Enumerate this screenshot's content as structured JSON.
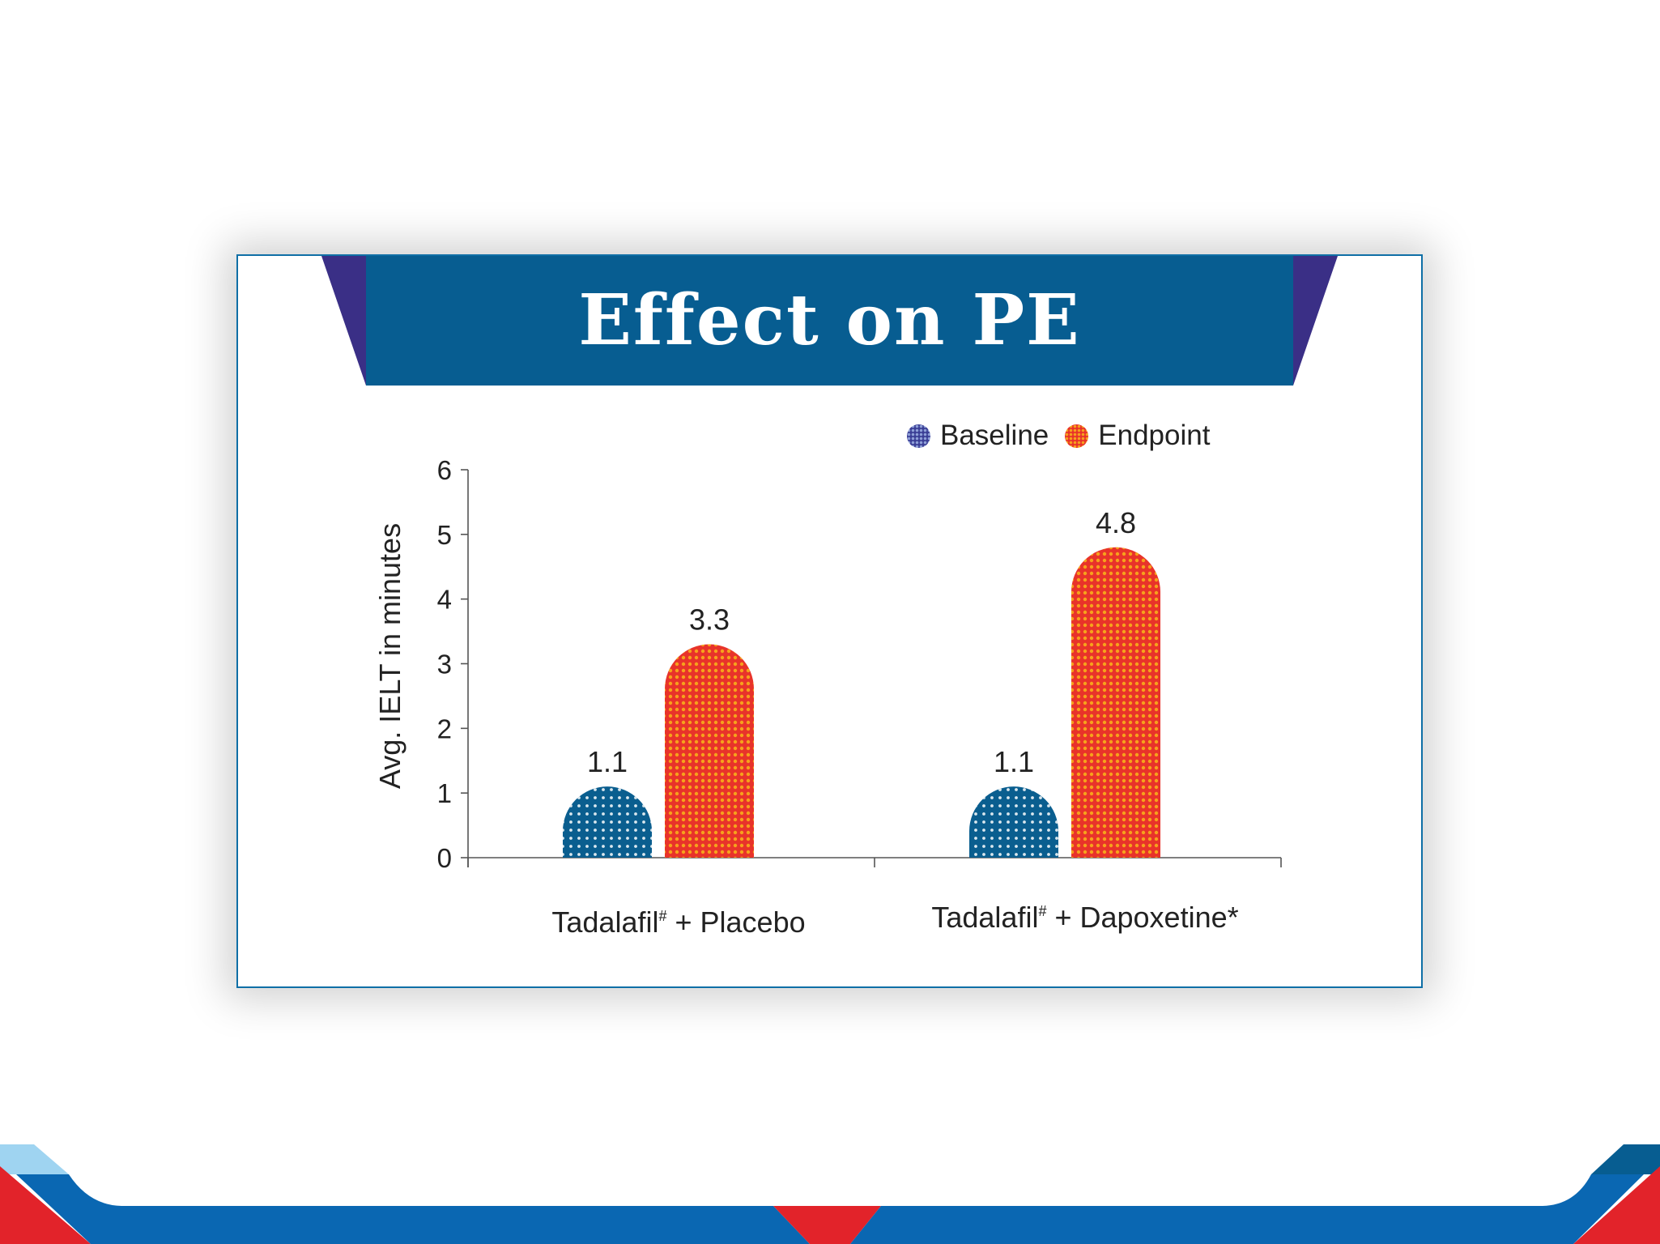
{
  "colors": {
    "banner": "#075d91",
    "banner_side": "#3a2f86",
    "baseline": "#0a5e8f",
    "endpoint": "#e8332a",
    "endpoint_dots": "#f6a21c",
    "footer_blue": "#0a67b2",
    "footer_red": "#e2232a",
    "footer_light": "#9fd4f1"
  },
  "icons": {
    "legend_baseline": "dotted-circle-icon",
    "legend_endpoint": "dotted-circle-icon"
  },
  "chart_data": {
    "type": "bar",
    "title": "Effect on PE",
    "ylabel": "Avg. IELT in minutes",
    "xlabel": "",
    "ylim": [
      0,
      6
    ],
    "yticks": [
      "0",
      "1",
      "2",
      "3",
      "4",
      "5",
      "6"
    ],
    "grid": false,
    "legend_position": "top-right",
    "categories": [
      {
        "name": "Tadalafil",
        "mark": "#",
        "rest": " + Placebo"
      },
      {
        "name": "Tadalafil",
        "mark": "#",
        "rest": " + Dapoxetine*"
      }
    ],
    "series": [
      {
        "name": "Baseline",
        "values": [
          1.1,
          1.1
        ],
        "labels": [
          "1.1",
          "1.1"
        ]
      },
      {
        "name": "Endpoint",
        "values": [
          3.3,
          4.8
        ],
        "labels": [
          "3.3",
          "4.8"
        ]
      }
    ]
  }
}
